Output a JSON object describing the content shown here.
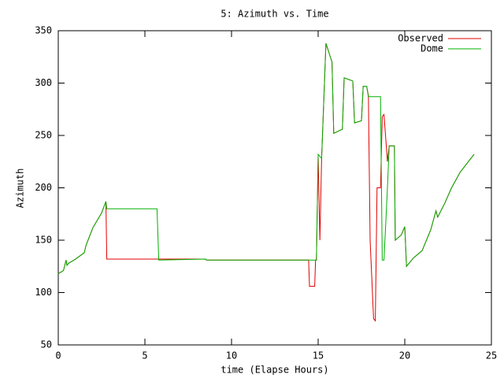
{
  "chart_data": {
    "type": "line",
    "title": "5: Azimuth vs. Time",
    "x_label": "time (Elapse Hours)",
    "y_label": "Azimuth",
    "x": [
      0,
      0.3,
      0.45,
      0.5,
      0.6,
      1,
      1.5,
      1.6,
      2,
      2.5,
      2.75,
      2.8,
      5.7,
      5.8,
      8.5,
      8.55,
      14.45,
      14.5,
      14.8,
      14.85,
      14.9,
      15.0,
      15.1,
      15.2,
      15.45,
      15.8,
      15.9,
      16.4,
      16.5,
      17.0,
      17.1,
      17.5,
      17.6,
      17.8,
      17.9,
      18.0,
      18.2,
      18.3,
      18.4,
      18.6,
      18.7,
      18.8,
      19.0,
      19.1,
      19.4,
      19.45,
      19.8,
      20.0,
      20.1,
      20.5,
      21.0,
      21.5,
      21.8,
      21.9,
      22.3,
      22.7,
      23.2,
      24.0
    ],
    "series": [
      {
        "name": "Observed",
        "color": "#e00000",
        "values": [
          118,
          121,
          131,
          126,
          128,
          132,
          138,
          145,
          162,
          176,
          187,
          132,
          132,
          132,
          132,
          131,
          131,
          106,
          106,
          131,
          131,
          230,
          150,
          228,
          338,
          320,
          252,
          256,
          305,
          302,
          262,
          264,
          297,
          297,
          288,
          150,
          75,
          73,
          200,
          200,
          268,
          270,
          225,
          240,
          240,
          150,
          155,
          163,
          125,
          133,
          140,
          160,
          178,
          172,
          185,
          200,
          215,
          232
        ]
      },
      {
        "name": "Dome",
        "color": "#00b000",
        "values": [
          118,
          121,
          131,
          126,
          128,
          132,
          138,
          145,
          162,
          176,
          187,
          180,
          180,
          131,
          132,
          131,
          131,
          131,
          131,
          131,
          131,
          232,
          230,
          228,
          338,
          320,
          252,
          256,
          305,
          302,
          262,
          264,
          297,
          297,
          287,
          287,
          287,
          287,
          287,
          287,
          131,
          131,
          200,
          240,
          240,
          150,
          155,
          163,
          125,
          133,
          140,
          160,
          178,
          172,
          185,
          200,
          215,
          232
        ]
      }
    ],
    "xlim": [
      0,
      25
    ],
    "xticks": [
      0,
      5,
      10,
      15,
      20,
      25
    ],
    "ylim": [
      50,
      350
    ],
    "yticks": [
      50,
      100,
      150,
      200,
      250,
      300,
      350
    ],
    "legend": "top-right"
  }
}
